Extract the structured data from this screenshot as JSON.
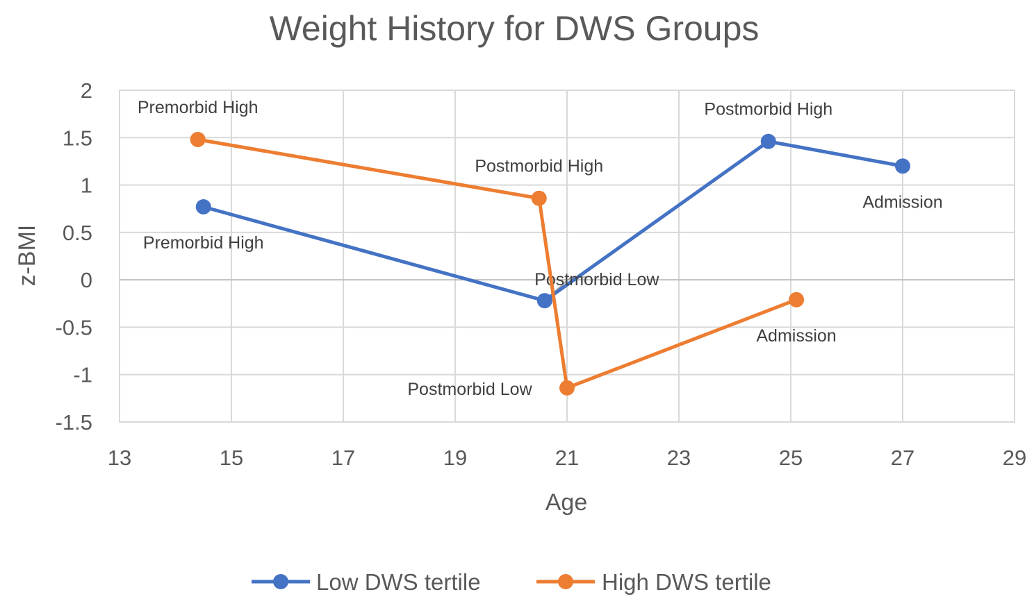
{
  "chart_data": {
    "type": "line",
    "title": "Weight History for DWS Groups",
    "xlabel": "Age",
    "ylabel": "z-BMI",
    "xlim": [
      13,
      29
    ],
    "ylim": [
      -1.5,
      2
    ],
    "xticks": [
      13,
      15,
      17,
      19,
      21,
      23,
      25,
      27,
      29
    ],
    "yticks": [
      -1.5,
      -1,
      -0.5,
      0,
      0.5,
      1,
      1.5,
      2
    ],
    "ytick_labels": [
      "-1.5",
      "-1",
      "-0.5",
      "0",
      "0.5",
      "1",
      "1.5",
      "2"
    ],
    "grid": true,
    "legend_position": "bottom",
    "series": [
      {
        "name": "Low DWS tertile",
        "color": "#4472C4",
        "points": [
          {
            "x": 14.5,
            "y": 0.77,
            "label": "Premorbid High"
          },
          {
            "x": 20.6,
            "y": -0.22,
            "label": "Postmorbid Low"
          },
          {
            "x": 24.6,
            "y": 1.46,
            "label": "Postmorbid High"
          },
          {
            "x": 27.0,
            "y": 1.2,
            "label": "Admission"
          }
        ]
      },
      {
        "name": "High DWS tertile",
        "color": "#ED7D31",
        "points": [
          {
            "x": 14.4,
            "y": 1.48,
            "label": "Premorbid High"
          },
          {
            "x": 20.5,
            "y": 0.86,
            "label": "Postmorbid High"
          },
          {
            "x": 21.0,
            "y": -1.14,
            "label": "Postmorbid Low"
          },
          {
            "x": 25.1,
            "y": -0.21,
            "label": "Admission"
          }
        ]
      }
    ]
  }
}
